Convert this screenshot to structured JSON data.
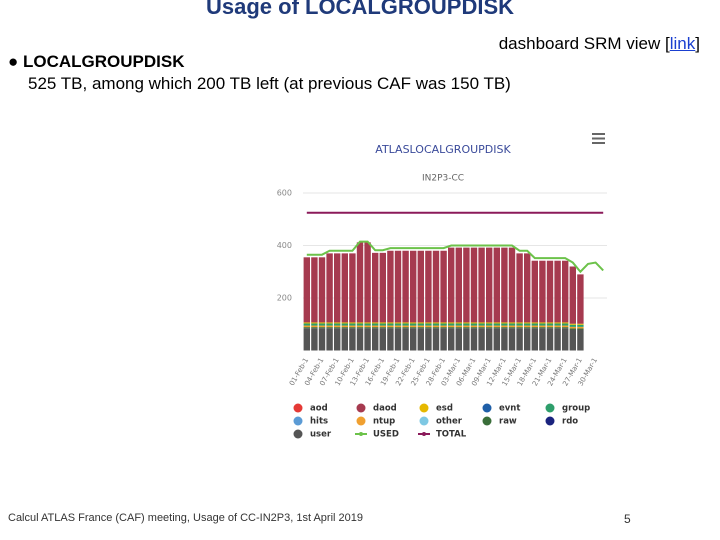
{
  "slide": {
    "title": "Usage of LOCALGROUPDISK",
    "link_prefix": "dashboard SRM view [",
    "link_text": "link",
    "link_suffix": "]",
    "bullet": "● LOCALGROUPDISK",
    "detail": "525 TB, among which 200 TB left (at previous CAF was 150 TB)",
    "footer": "Calcul ATLAS France (CAF) meeting, Usage of CC-IN2P3, 1st April 2019",
    "page": "5"
  },
  "chart_data": {
    "type": "bar",
    "stacked": true,
    "title": "ATLASLOCALGROUPDISK",
    "subtitle": "IN2P3-CC",
    "categories": [
      "01-Feb-1",
      null,
      "04-Feb-1",
      null,
      "07-Feb-1",
      null,
      "10-Feb-1",
      null,
      "13-Feb-1",
      null,
      "16-Feb-1",
      null,
      "19-Feb-1",
      null,
      "22-Feb-1",
      null,
      "25-Feb-1",
      null,
      "28-Feb-1",
      null,
      "03-Mar-1",
      null,
      "06-Mar-1",
      null,
      "09-Mar-1",
      null,
      "12-Mar-1",
      null,
      "15-Mar-1",
      null,
      "18-Mar-1",
      null,
      "21-Mar-1",
      null,
      "24-Mar-1",
      null,
      "27-Mar-1",
      null,
      "30-Mar-1",
      null
    ],
    "ylim": [
      0,
      600
    ],
    "yticks": [
      200,
      400,
      600
    ],
    "grid": true,
    "series": [
      {
        "name": "aod",
        "color": "#e53935",
        "values": [
          0,
          0,
          0,
          0,
          0,
          0,
          0,
          0,
          0,
          0,
          0,
          0,
          0,
          0,
          0,
          0,
          0,
          0,
          0,
          0,
          0,
          0,
          0,
          0,
          0,
          0,
          0,
          0,
          0,
          0,
          0,
          0,
          0,
          0,
          0,
          0,
          0,
          null,
          null,
          null
        ]
      },
      {
        "name": "daod",
        "color": "#a63a4f",
        "values": [
          248,
          248,
          248,
          263,
          263,
          263,
          263,
          305,
          305,
          265,
          265,
          273,
          273,
          273,
          273,
          273,
          273,
          273,
          273,
          285,
          285,
          285,
          285,
          285,
          285,
          285,
          285,
          285,
          263,
          263,
          235,
          235,
          235,
          235,
          235,
          218,
          188,
          null,
          null,
          null
        ]
      },
      {
        "name": "esd",
        "color": "#e6b800",
        "values": [
          4,
          4,
          4,
          4,
          4,
          4,
          4,
          4,
          4,
          4,
          4,
          4,
          4,
          4,
          4,
          4,
          4,
          4,
          4,
          4,
          4,
          4,
          4,
          4,
          4,
          4,
          4,
          4,
          4,
          4,
          4,
          4,
          4,
          4,
          4,
          4,
          4,
          null,
          null,
          null
        ]
      },
      {
        "name": "evnt",
        "color": "#1f5fa8",
        "values": [
          0,
          0,
          0,
          0,
          0,
          0,
          0,
          0,
          0,
          0,
          0,
          0,
          0,
          0,
          0,
          0,
          0,
          0,
          0,
          0,
          0,
          0,
          0,
          0,
          0,
          0,
          0,
          0,
          0,
          0,
          0,
          0,
          0,
          0,
          0,
          0,
          0,
          null,
          null,
          null
        ]
      },
      {
        "name": "group",
        "color": "#2e9e6b",
        "values": [
          8,
          8,
          8,
          8,
          8,
          8,
          8,
          8,
          8,
          8,
          8,
          8,
          8,
          8,
          8,
          8,
          8,
          8,
          8,
          8,
          8,
          8,
          8,
          8,
          8,
          8,
          8,
          8,
          8,
          8,
          8,
          8,
          8,
          8,
          8,
          8,
          8,
          null,
          null,
          null
        ]
      },
      {
        "name": "hits",
        "color": "#5b9bd5",
        "values": [
          0,
          0,
          0,
          0,
          0,
          0,
          0,
          0,
          0,
          0,
          0,
          0,
          0,
          0,
          0,
          0,
          0,
          0,
          0,
          0,
          0,
          0,
          0,
          0,
          0,
          0,
          0,
          0,
          0,
          0,
          0,
          0,
          0,
          0,
          0,
          0,
          0,
          null,
          null,
          null
        ]
      },
      {
        "name": "ntup",
        "color": "#f0a030",
        "values": [
          6,
          6,
          6,
          6,
          6,
          6,
          6,
          6,
          6,
          6,
          6,
          6,
          6,
          6,
          6,
          6,
          6,
          6,
          6,
          6,
          6,
          6,
          6,
          6,
          6,
          6,
          6,
          6,
          6,
          6,
          6,
          6,
          6,
          6,
          6,
          6,
          6,
          null,
          null,
          null
        ]
      },
      {
        "name": "other",
        "color": "#7ec8e3",
        "values": [
          0,
          0,
          0,
          0,
          0,
          0,
          0,
          0,
          0,
          0,
          0,
          0,
          0,
          0,
          0,
          0,
          0,
          0,
          0,
          0,
          0,
          0,
          0,
          0,
          0,
          0,
          0,
          0,
          0,
          0,
          0,
          0,
          0,
          0,
          0,
          0,
          0,
          null,
          null,
          null
        ]
      },
      {
        "name": "raw",
        "color": "#3a6e3a",
        "values": [
          4,
          4,
          4,
          4,
          4,
          4,
          4,
          4,
          4,
          4,
          4,
          4,
          4,
          4,
          4,
          4,
          4,
          4,
          4,
          4,
          4,
          4,
          4,
          4,
          4,
          4,
          4,
          4,
          4,
          4,
          4,
          4,
          4,
          4,
          4,
          4,
          4,
          null,
          null,
          null
        ]
      },
      {
        "name": "rdo",
        "color": "#1a237e",
        "values": [
          0,
          0,
          0,
          0,
          0,
          0,
          0,
          0,
          0,
          0,
          0,
          0,
          0,
          0,
          0,
          0,
          0,
          0,
          0,
          0,
          0,
          0,
          0,
          0,
          0,
          0,
          0,
          0,
          0,
          0,
          0,
          0,
          0,
          0,
          0,
          0,
          0,
          null,
          null,
          null
        ]
      },
      {
        "name": "user",
        "color": "#555555",
        "values": [
          85,
          85,
          85,
          85,
          85,
          85,
          85,
          85,
          85,
          85,
          85,
          85,
          85,
          85,
          85,
          85,
          85,
          85,
          85,
          85,
          85,
          85,
          85,
          85,
          85,
          85,
          85,
          85,
          85,
          85,
          85,
          85,
          85,
          85,
          85,
          80,
          80,
          null,
          null,
          null
        ]
      },
      {
        "name": "USED",
        "color": "#6cc24a",
        "type": "line",
        "values": [
          365,
          365,
          365,
          380,
          380,
          380,
          380,
          415,
          415,
          382,
          382,
          390,
          390,
          390,
          390,
          390,
          390,
          390,
          390,
          400,
          400,
          400,
          400,
          400,
          400,
          400,
          400,
          400,
          380,
          380,
          352,
          352,
          352,
          352,
          352,
          335,
          300,
          330,
          335,
          305
        ]
      },
      {
        "name": "TOTAL",
        "color": "#8b1a5a",
        "type": "line",
        "values": [
          525,
          525,
          525,
          525,
          525,
          525,
          525,
          525,
          525,
          525,
          525,
          525,
          525,
          525,
          525,
          525,
          525,
          525,
          525,
          525,
          525,
          525,
          525,
          525,
          525,
          525,
          525,
          525,
          525,
          525,
          525,
          525,
          525,
          525,
          525,
          525,
          525,
          525,
          525,
          525
        ]
      }
    ]
  }
}
